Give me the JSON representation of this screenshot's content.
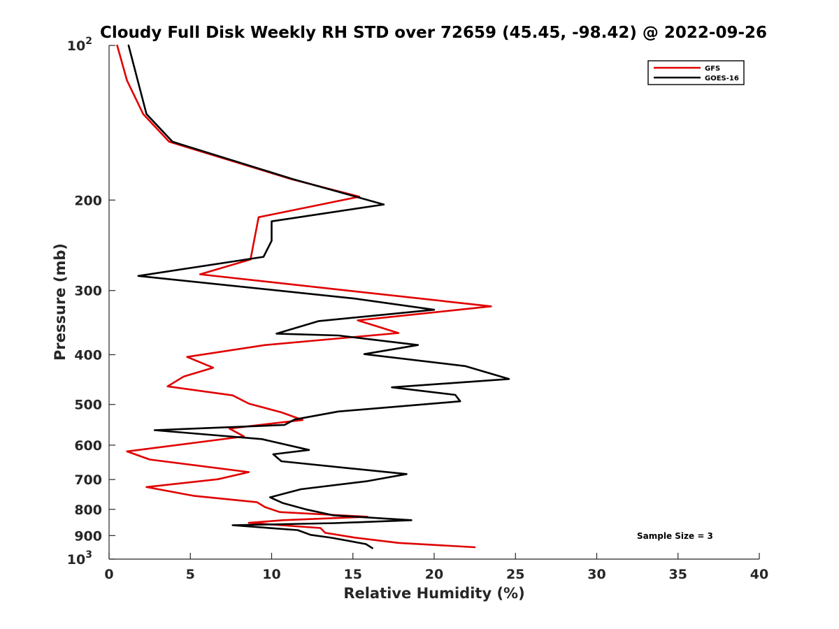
{
  "chart_data": {
    "type": "line",
    "title": "Cloudy Full Disk Weekly RH STD over 72659 (45.45, -98.42) @ 2022-09-26",
    "xlabel": "Relative Humidity (%)",
    "ylabel": "Pressure (mb)",
    "xlim": [
      0,
      40
    ],
    "ylim": [
      100,
      1000
    ],
    "y_scale": "log",
    "y_reversed": true,
    "grid": false,
    "legend_position": "top-right",
    "x_ticks": [
      {
        "value": 0,
        "label": "0"
      },
      {
        "value": 5,
        "label": "5"
      },
      {
        "value": 10,
        "label": "10"
      },
      {
        "value": 15,
        "label": "15"
      },
      {
        "value": 20,
        "label": "20"
      },
      {
        "value": 25,
        "label": "25"
      },
      {
        "value": 30,
        "label": "30"
      },
      {
        "value": 35,
        "label": "35"
      },
      {
        "value": 40,
        "label": "40"
      }
    ],
    "y_ticks": [
      {
        "value": 100,
        "base": "10",
        "exp": "2"
      },
      {
        "value": 200,
        "base": "200",
        "exp": ""
      },
      {
        "value": 300,
        "base": "300",
        "exp": ""
      },
      {
        "value": 400,
        "base": "400",
        "exp": ""
      },
      {
        "value": 500,
        "base": "500",
        "exp": ""
      },
      {
        "value": 600,
        "base": "600",
        "exp": ""
      },
      {
        "value": 700,
        "base": "700",
        "exp": ""
      },
      {
        "value": 800,
        "base": "800",
        "exp": ""
      },
      {
        "value": 900,
        "base": "900",
        "exp": ""
      },
      {
        "value": 1000,
        "base": "10",
        "exp": "3"
      }
    ],
    "annotation": "Sample Size = 3",
    "series": [
      {
        "name": "GFS",
        "color": "#e00000",
        "points": [
          [
            0.5,
            100
          ],
          [
            1.1,
            117
          ],
          [
            2.1,
            136
          ],
          [
            3.7,
            154
          ],
          [
            11.2,
            182
          ],
          [
            15.4,
            197
          ],
          [
            9.2,
            216
          ],
          [
            8.7,
            261
          ],
          [
            5.6,
            279
          ],
          [
            23.5,
            322
          ],
          [
            15.3,
            343
          ],
          [
            17.8,
            363
          ],
          [
            9.6,
            383
          ],
          [
            4.8,
            404
          ],
          [
            6.4,
            424
          ],
          [
            4.6,
            441
          ],
          [
            3.6,
            461
          ],
          [
            7.6,
            480
          ],
          [
            8.6,
            498
          ],
          [
            10.6,
            518
          ],
          [
            11.9,
            536
          ],
          [
            7.4,
            557
          ],
          [
            8.3,
            577
          ],
          [
            1.1,
            617
          ],
          [
            2.5,
            640
          ],
          [
            8.6,
            677
          ],
          [
            6.7,
            699
          ],
          [
            2.3,
            724
          ],
          [
            5.2,
            753
          ],
          [
            9.1,
            775
          ],
          [
            9.6,
            792
          ],
          [
            10.5,
            810
          ],
          [
            15.9,
            827
          ],
          [
            10.7,
            840
          ],
          [
            8.6,
            850
          ],
          [
            13.0,
            870
          ],
          [
            13.3,
            889
          ],
          [
            15.1,
            908
          ],
          [
            17.8,
            930
          ],
          [
            22.5,
            948
          ]
        ]
      },
      {
        "name": "GOES-16",
        "color": "#000000",
        "points": [
          [
            1.2,
            100
          ],
          [
            2.3,
            136
          ],
          [
            3.9,
            154
          ],
          [
            11.3,
            182
          ],
          [
            16.9,
            204
          ],
          [
            10.0,
            220
          ],
          [
            10.0,
            240
          ],
          [
            9.5,
            258
          ],
          [
            1.8,
            281
          ],
          [
            15.1,
            311
          ],
          [
            20.0,
            327
          ],
          [
            12.9,
            344
          ],
          [
            10.3,
            364
          ],
          [
            14.1,
            367
          ],
          [
            19.0,
            383
          ],
          [
            15.7,
            399
          ],
          [
            21.9,
            421
          ],
          [
            24.6,
            446
          ],
          [
            17.4,
            463
          ],
          [
            21.3,
            479
          ],
          [
            21.6,
            493
          ],
          [
            14.1,
            516
          ],
          [
            11.4,
            535
          ],
          [
            10.8,
            548
          ],
          [
            2.8,
            561
          ],
          [
            9.4,
            584
          ],
          [
            12.3,
            613
          ],
          [
            10.1,
            625
          ],
          [
            10.6,
            645
          ],
          [
            14.9,
            666
          ],
          [
            18.3,
            683
          ],
          [
            15.9,
            705
          ],
          [
            11.8,
            731
          ],
          [
            9.9,
            758
          ],
          [
            10.7,
            778
          ],
          [
            12.1,
            800
          ],
          [
            13.8,
            822
          ],
          [
            18.6,
            840
          ],
          [
            13.9,
            851
          ],
          [
            7.6,
            859
          ],
          [
            11.6,
            878
          ],
          [
            12.4,
            897
          ],
          [
            13.7,
            909
          ],
          [
            15.8,
            935
          ],
          [
            16.2,
            952
          ]
        ]
      }
    ]
  }
}
